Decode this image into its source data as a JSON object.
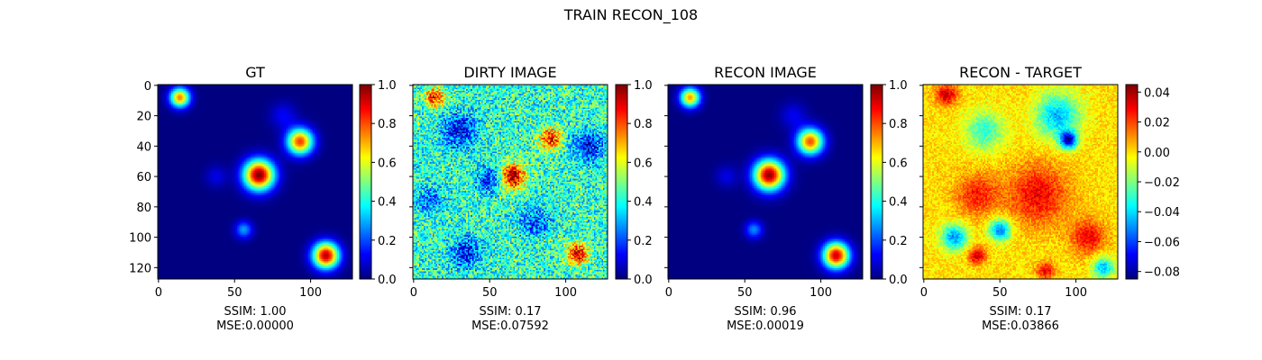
{
  "figure_title": "TRAIN RECON_108",
  "chart_data": [
    {
      "type": "heatmap",
      "title": "GT",
      "colormap": "jet",
      "image_size": [
        128,
        128
      ],
      "xticks": [
        0,
        50,
        100
      ],
      "yticks": [
        0,
        20,
        40,
        60,
        80,
        100,
        120
      ],
      "xlabel_lines": [
        "SSIM: 1.00",
        "MSE:0.00000"
      ],
      "colorbar": {
        "range": [
          0.0,
          1.0
        ],
        "ticks": [
          "0.0",
          "0.2",
          "0.4",
          "0.6",
          "0.8",
          "1.0"
        ]
      },
      "blobs": [
        {
          "x": 14,
          "y": 8,
          "amp": 0.75,
          "sigma": 4.5
        },
        {
          "x": 93,
          "y": 37,
          "amp": 0.82,
          "sigma": 6
        },
        {
          "x": 66,
          "y": 59,
          "amp": 1.0,
          "sigma": 7
        },
        {
          "x": 110,
          "y": 112,
          "amp": 0.95,
          "sigma": 6
        },
        {
          "x": 56,
          "y": 95,
          "amp": 0.28,
          "sigma": 4
        },
        {
          "x": 82,
          "y": 20,
          "amp": 0.12,
          "sigma": 6
        },
        {
          "x": 38,
          "y": 60,
          "amp": 0.1,
          "sigma": 5
        }
      ]
    },
    {
      "type": "heatmap",
      "title": "DIRTY IMAGE",
      "colormap": "jet",
      "image_size": [
        128,
        128
      ],
      "xticks": [
        0,
        50,
        100
      ],
      "xlabel_lines": [
        "SSIM: 0.17",
        "MSE:0.07592"
      ],
      "colorbar": {
        "range": [
          0.0,
          1.0
        ],
        "ticks": [
          "0.0",
          "0.2",
          "0.4",
          "0.6",
          "0.8",
          "1.0"
        ]
      },
      "background_level": 0.42,
      "noise_level": 0.18,
      "blobs": [
        {
          "x": 14,
          "y": 8,
          "amp": 0.45,
          "sigma": 4.5
        },
        {
          "x": 90,
          "y": 35,
          "amp": 0.45,
          "sigma": 5
        },
        {
          "x": 65,
          "y": 60,
          "amp": 0.55,
          "sigma": 6
        },
        {
          "x": 108,
          "y": 111,
          "amp": 0.5,
          "sigma": 5
        },
        {
          "x": 30,
          "y": 30,
          "amp": -0.3,
          "sigma": 8
        },
        {
          "x": 50,
          "y": 62,
          "amp": -0.28,
          "sigma": 6
        },
        {
          "x": 115,
          "y": 40,
          "amp": -0.3,
          "sigma": 7
        },
        {
          "x": 35,
          "y": 110,
          "amp": -0.28,
          "sigma": 7
        },
        {
          "x": 80,
          "y": 90,
          "amp": -0.22,
          "sigma": 7
        },
        {
          "x": 10,
          "y": 75,
          "amp": -0.2,
          "sigma": 6
        }
      ]
    },
    {
      "type": "heatmap",
      "title": "RECON IMAGE",
      "colormap": "jet",
      "image_size": [
        128,
        128
      ],
      "xticks": [
        0,
        50,
        100
      ],
      "xlabel_lines": [
        "SSIM: 0.96",
        "MSE:0.00019"
      ],
      "colorbar": {
        "range": [
          0.0,
          1.0
        ],
        "ticks": [
          "0.0",
          "0.2",
          "0.4",
          "0.6",
          "0.8",
          "1.0"
        ]
      },
      "blobs": [
        {
          "x": 14,
          "y": 8,
          "amp": 0.72,
          "sigma": 4.5
        },
        {
          "x": 93,
          "y": 37,
          "amp": 0.8,
          "sigma": 6
        },
        {
          "x": 66,
          "y": 59,
          "amp": 0.98,
          "sigma": 7
        },
        {
          "x": 110,
          "y": 112,
          "amp": 0.93,
          "sigma": 6
        },
        {
          "x": 56,
          "y": 95,
          "amp": 0.26,
          "sigma": 4
        },
        {
          "x": 82,
          "y": 20,
          "amp": 0.11,
          "sigma": 6
        },
        {
          "x": 38,
          "y": 60,
          "amp": 0.1,
          "sigma": 5
        }
      ]
    },
    {
      "type": "heatmap",
      "title": "RECON - TARGET",
      "colormap": "jet",
      "image_size": [
        128,
        128
      ],
      "xticks": [
        0,
        50,
        100
      ],
      "xlabel_lines": [
        "SSIM: 0.17",
        "MSE:0.03866"
      ],
      "colorbar": {
        "range": [
          -0.085,
          0.045
        ],
        "ticks": [
          "0.04",
          "0.02",
          "0.00",
          "−0.02",
          "−0.04",
          "−0.06",
          "−0.08"
        ]
      },
      "background_level": 0.0,
      "noise_level": 0.008,
      "blobs": [
        {
          "x": 15,
          "y": 6,
          "amp": 0.035,
          "sigma": 5
        },
        {
          "x": 75,
          "y": 72,
          "amp": 0.03,
          "sigma": 14
        },
        {
          "x": 35,
          "y": 72,
          "amp": 0.025,
          "sigma": 10
        },
        {
          "x": 108,
          "y": 100,
          "amp": 0.03,
          "sigma": 8
        },
        {
          "x": 35,
          "y": 112,
          "amp": 0.035,
          "sigma": 4
        },
        {
          "x": 80,
          "y": 122,
          "amp": 0.03,
          "sigma": 4
        },
        {
          "x": 95,
          "y": 36,
          "amp": -0.075,
          "sigma": 4
        },
        {
          "x": 88,
          "y": 20,
          "amp": -0.045,
          "sigma": 10
        },
        {
          "x": 20,
          "y": 100,
          "amp": -0.05,
          "sigma": 6
        },
        {
          "x": 50,
          "y": 95,
          "amp": -0.055,
          "sigma": 5
        },
        {
          "x": 40,
          "y": 30,
          "amp": -0.03,
          "sigma": 9
        },
        {
          "x": 118,
          "y": 120,
          "amp": -0.045,
          "sigma": 5
        }
      ]
    }
  ]
}
